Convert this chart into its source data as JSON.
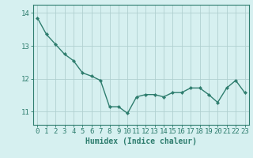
{
  "x": [
    0,
    1,
    2,
    3,
    4,
    5,
    6,
    7,
    8,
    9,
    10,
    11,
    12,
    13,
    14,
    15,
    16,
    17,
    18,
    19,
    20,
    21,
    22,
    23
  ],
  "y": [
    13.85,
    13.35,
    13.05,
    12.75,
    12.55,
    12.18,
    12.08,
    11.95,
    11.15,
    11.15,
    10.95,
    11.45,
    11.52,
    11.52,
    11.45,
    11.58,
    11.58,
    11.72,
    11.72,
    11.52,
    11.28,
    11.72,
    11.95,
    11.58
  ],
  "line_color": "#2e7d6e",
  "marker": "D",
  "marker_size": 2.2,
  "line_width": 1.0,
  "bg_color": "#d6f0f0",
  "grid_color": "#b0d0d0",
  "xlabel": "Humidex (Indice chaleur)",
  "xlabel_fontsize": 7,
  "xtick_labels": [
    "0",
    "1",
    "2",
    "3",
    "4",
    "5",
    "6",
    "7",
    "8",
    "9",
    "10",
    "11",
    "12",
    "13",
    "14",
    "15",
    "16",
    "17",
    "18",
    "19",
    "20",
    "21",
    "22",
    "23"
  ],
  "ytick_labels": [
    "11",
    "12",
    "13",
    "14"
  ],
  "ytick_values": [
    11,
    12,
    13,
    14
  ],
  "ylim": [
    10.6,
    14.25
  ],
  "xlim": [
    -0.5,
    23.5
  ],
  "tick_color": "#2e7d6e",
  "axis_color": "#2e7d6e",
  "label_color": "#2e7d6e",
  "tick_fontsize": 6.5
}
